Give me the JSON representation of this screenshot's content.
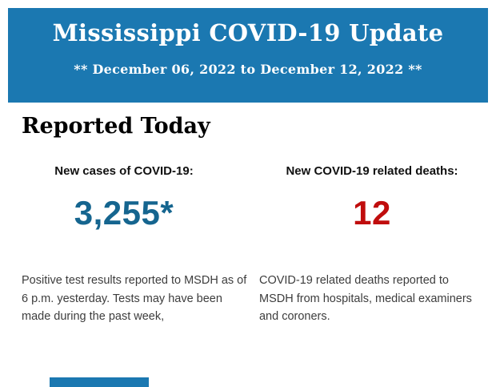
{
  "banner": {
    "title": "Mississippi COVID-19 Update",
    "date_range": "** December 06, 2022 to December 12, 2022 **",
    "background_color": "#1b78b1",
    "text_color": "#ffffff"
  },
  "section": {
    "heading": "Reported Today",
    "stats": [
      {
        "label": "New cases of COVID-19:",
        "value": "3,255*",
        "value_color": "#15658f",
        "description": "Positive test results reported to MSDH as of 6 p.m. yesterday. Tests may have been made during the past week,"
      },
      {
        "label": "New COVID-19 related deaths:",
        "value": "12",
        "value_color": "#c00d0d",
        "description": "COVID-19 related deaths reported to MSDH from hospitals, medical examiners and coroners."
      }
    ]
  },
  "footer": {
    "accent_bar_color": "#1b78b1"
  }
}
